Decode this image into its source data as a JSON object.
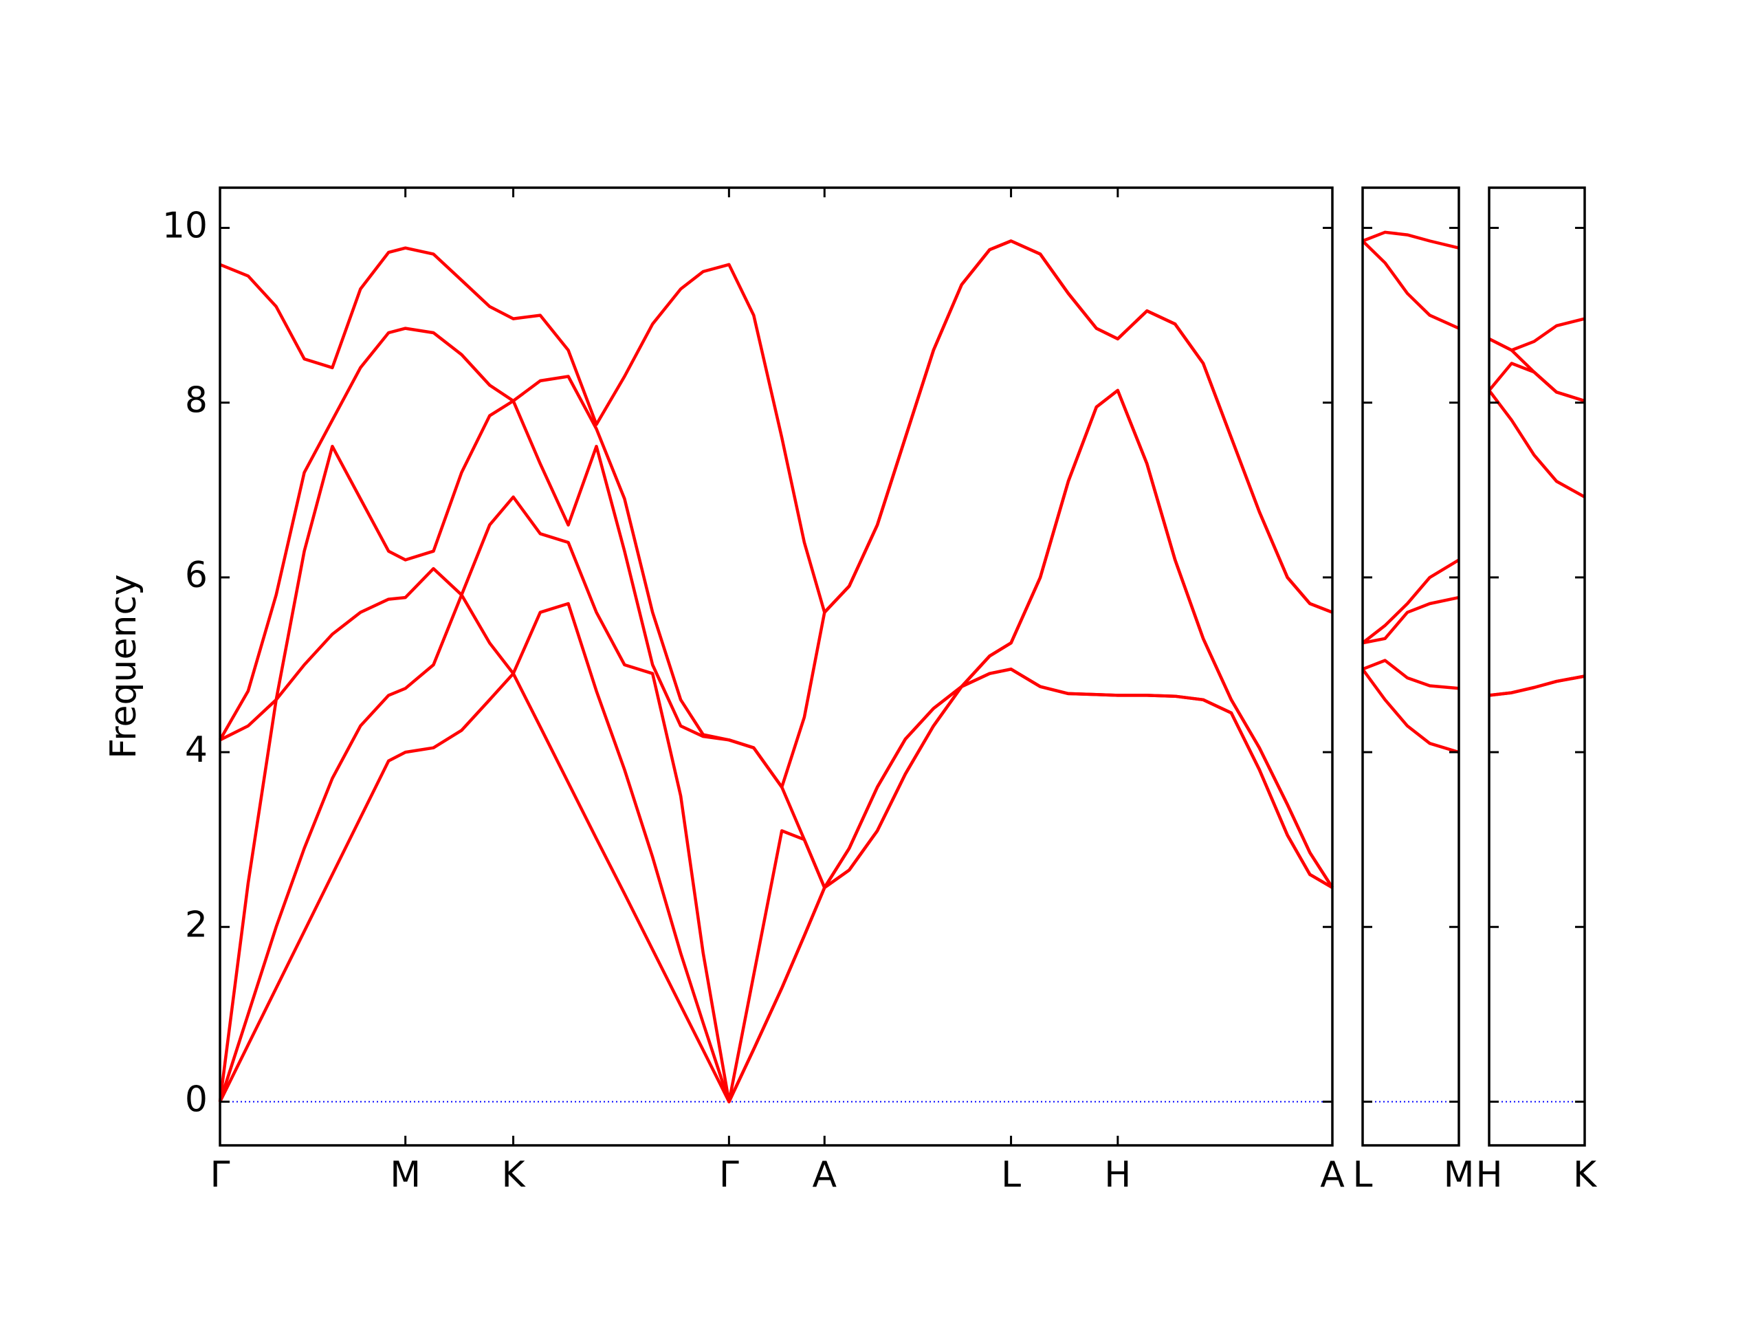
{
  "chart_data": [
    {
      "type": "line",
      "ylabel": "Frequency",
      "x": [
        0,
        0.25,
        0.5,
        0.75,
        1.0,
        1.25,
        1.5,
        1.65,
        1.9,
        2.15,
        2.4,
        2.61,
        2.85,
        3.1,
        3.35,
        3.6,
        3.85,
        4.1,
        4.3,
        4.53,
        4.75,
        5.0,
        5.2,
        5.38,
        5.6,
        5.85,
        6.1,
        6.35,
        6.6,
        6.85,
        7.04,
        7.3,
        7.55,
        7.8,
        7.99,
        8.25,
        8.5,
        8.75,
        9.0,
        9.25,
        9.5,
        9.7,
        9.9
      ],
      "series": [
        {
          "color": "#ff0000",
          "values": [
            0,
            0.65,
            1.3,
            1.95,
            2.6,
            3.25,
            3.9,
            4.0,
            4.05,
            4.25,
            4.6,
            4.9,
            4.29,
            3.65,
            3.01,
            2.38,
            1.74,
            1.1,
            0.59,
            0,
            0.6,
            1.3,
            1.9,
            2.45,
            2.65,
            3.1,
            3.75,
            4.3,
            4.75,
            4.9,
            4.95,
            4.75,
            4.67,
            4.66,
            4.65,
            4.65,
            4.64,
            4.6,
            4.45,
            3.8,
            3.05,
            2.6,
            2.45
          ]
        },
        {
          "color": "#ff0000",
          "values": [
            0,
            1.0,
            2.0,
            2.9,
            3.7,
            4.3,
            4.65,
            4.73,
            5.0,
            5.8,
            5.25,
            4.9,
            5.6,
            5.7,
            4.7,
            3.8,
            2.8,
            1.7,
            0.9,
            0,
            0.6,
            1.3,
            1.9,
            2.45,
            2.65,
            3.1,
            3.75,
            4.3,
            4.75,
            4.9,
            4.95,
            4.75,
            4.67,
            4.66,
            4.65,
            4.65,
            4.64,
            4.6,
            4.45,
            3.8,
            3.05,
            2.6,
            2.45
          ]
        },
        {
          "color": "#ff0000",
          "values": [
            0,
            2.5,
            4.6,
            5.0,
            5.35,
            5.6,
            5.75,
            5.77,
            6.1,
            5.8,
            6.6,
            6.92,
            6.5,
            6.4,
            5.6,
            5.0,
            4.9,
            3.5,
            1.7,
            0,
            1.45,
            3.1,
            3.0,
            2.45,
            2.9,
            3.6,
            4.15,
            4.5,
            4.75,
            5.1,
            5.25,
            6.0,
            7.1,
            7.95,
            8.14,
            7.3,
            6.2,
            5.3,
            4.6,
            4.05,
            3.4,
            2.85,
            2.45
          ]
        },
        {
          "color": "#ff0000",
          "values": [
            4.14,
            4.3,
            4.6,
            6.3,
            7.5,
            6.9,
            6.3,
            6.2,
            6.3,
            7.2,
            7.85,
            8.02,
            7.3,
            6.6,
            7.5,
            6.3,
            5.0,
            4.3,
            4.18,
            4.14,
            4.05,
            3.6,
            3.0,
            2.45,
            2.9,
            3.6,
            4.15,
            4.5,
            4.75,
            5.1,
            5.25,
            6.0,
            7.1,
            7.95,
            8.14,
            7.3,
            6.2,
            5.3,
            4.6,
            4.05,
            3.4,
            2.85,
            2.45
          ]
        },
        {
          "color": "#ff0000",
          "values": [
            4.14,
            4.7,
            5.8,
            7.2,
            7.8,
            8.4,
            8.8,
            8.85,
            8.8,
            8.55,
            8.2,
            8.02,
            8.25,
            8.3,
            7.7,
            6.9,
            5.6,
            4.6,
            4.2,
            4.14,
            4.05,
            3.6,
            4.4,
            5.6,
            5.9,
            6.6,
            7.6,
            8.6,
            9.35,
            9.75,
            9.85,
            9.7,
            9.25,
            8.85,
            8.73,
            9.05,
            8.9,
            8.45,
            7.6,
            6.75,
            6.0,
            5.7,
            5.6
          ]
        },
        {
          "color": "#ff0000",
          "values": [
            9.58,
            9.45,
            9.1,
            8.5,
            8.4,
            9.3,
            9.72,
            9.77,
            9.7,
            9.4,
            9.1,
            8.96,
            9.0,
            8.6,
            7.75,
            8.3,
            8.9,
            9.3,
            9.5,
            9.58,
            9.0,
            7.6,
            6.4,
            5.6,
            5.9,
            6.6,
            7.6,
            8.6,
            9.35,
            9.75,
            9.85,
            9.7,
            9.25,
            8.85,
            8.73,
            9.05,
            8.9,
            8.45,
            7.6,
            6.75,
            6.0,
            5.7,
            5.6
          ]
        }
      ],
      "xlim": [
        0,
        9.9
      ],
      "xticks": [
        {
          "value": 0,
          "label": "Γ"
        },
        {
          "value": 1.65,
          "label": "M"
        },
        {
          "value": 2.61,
          "label": "K"
        },
        {
          "value": 4.53,
          "label": "Γ"
        },
        {
          "value": 5.38,
          "label": "A"
        },
        {
          "value": 7.04,
          "label": "L"
        },
        {
          "value": 7.99,
          "label": "H"
        },
        {
          "value": 9.9,
          "label": "A"
        }
      ],
      "ylim": [
        -0.5,
        10.46
      ],
      "yticks": [
        0,
        2,
        4,
        6,
        8,
        10
      ],
      "ytick_labels": true,
      "hline": 0,
      "hline_color": "#0000ff"
    },
    {
      "type": "line",
      "x": [
        0,
        0.2,
        0.4,
        0.6,
        0.86
      ],
      "series": [
        {
          "color": "#ff0000",
          "values": [
            4.95,
            4.6,
            4.3,
            4.1,
            4.0
          ]
        },
        {
          "color": "#ff0000",
          "values": [
            4.95,
            5.05,
            4.85,
            4.76,
            4.73
          ]
        },
        {
          "color": "#ff0000",
          "values": [
            5.25,
            5.3,
            5.6,
            5.7,
            5.77
          ]
        },
        {
          "color": "#ff0000",
          "values": [
            5.25,
            5.45,
            5.7,
            6.0,
            6.2
          ]
        },
        {
          "color": "#ff0000",
          "values": [
            9.85,
            9.6,
            9.25,
            9.0,
            8.85
          ]
        },
        {
          "color": "#ff0000",
          "values": [
            9.85,
            9.95,
            9.92,
            9.85,
            9.77
          ]
        }
      ],
      "xlim": [
        0,
        0.86
      ],
      "xticks": [
        {
          "value": 0,
          "label": "L"
        },
        {
          "value": 0.86,
          "label": "M"
        }
      ],
      "ylim": [
        -0.5,
        10.46
      ],
      "yticks": [
        0,
        2,
        4,
        6,
        8,
        10
      ],
      "ytick_labels": false,
      "hline": 0,
      "hline_color": "#0000ff"
    },
    {
      "type": "line",
      "x": [
        0,
        0.2,
        0.4,
        0.6,
        0.85
      ],
      "series": [
        {
          "color": "#ff0000",
          "values": [
            4.65,
            4.68,
            4.74,
            4.81,
            4.87
          ]
        },
        {
          "color": "#ff0000",
          "values": [
            4.65,
            4.68,
            4.74,
            4.81,
            4.87
          ]
        },
        {
          "color": "#ff0000",
          "values": [
            8.14,
            7.8,
            7.4,
            7.1,
            6.92
          ]
        },
        {
          "color": "#ff0000",
          "values": [
            8.14,
            8.45,
            8.35,
            8.12,
            8.02
          ]
        },
        {
          "color": "#ff0000",
          "values": [
            8.73,
            8.6,
            8.35,
            8.12,
            8.02
          ]
        },
        {
          "color": "#ff0000",
          "values": [
            8.73,
            8.6,
            8.7,
            8.88,
            8.96
          ]
        }
      ],
      "xlim": [
        0,
        0.85
      ],
      "xticks": [
        {
          "value": 0,
          "label": "H"
        },
        {
          "value": 0.85,
          "label": "K"
        }
      ],
      "ylim": [
        -0.5,
        10.46
      ],
      "yticks": [
        0,
        2,
        4,
        6,
        8,
        10
      ],
      "ytick_labels": false,
      "hline": 0,
      "hline_color": "#0000ff"
    }
  ]
}
